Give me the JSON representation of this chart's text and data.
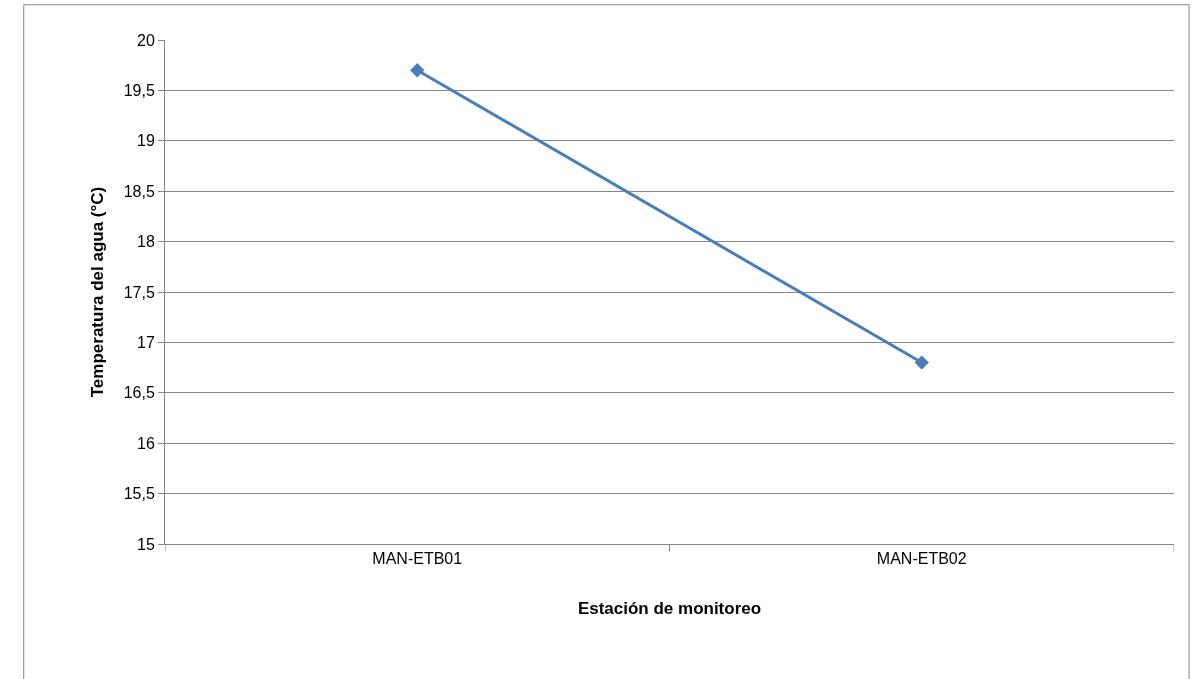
{
  "chart_data": {
    "type": "line",
    "xlabel": "Estación de monitoreo",
    "ylabel": "Temperatura del agua (°C)",
    "categories": [
      "MAN-ETB01",
      "MAN-ETB02"
    ],
    "series": [
      {
        "color": "#4a7ebb",
        "values": [
          19.7,
          16.8
        ]
      }
    ],
    "ylim": [
      15,
      20
    ],
    "yticks": [
      15,
      {
        "value": 15.5,
        "label": "15,5"
      },
      16,
      {
        "value": 16.5,
        "label": "16,5"
      },
      17,
      {
        "value": 17.5,
        "label": "17,5"
      },
      18,
      {
        "value": 18.5,
        "label": "18,5"
      },
      19,
      {
        "value": 19.5,
        "label": "19,5"
      },
      20
    ],
    "grid": "y",
    "marker": "diamond",
    "line_style": "solid"
  }
}
